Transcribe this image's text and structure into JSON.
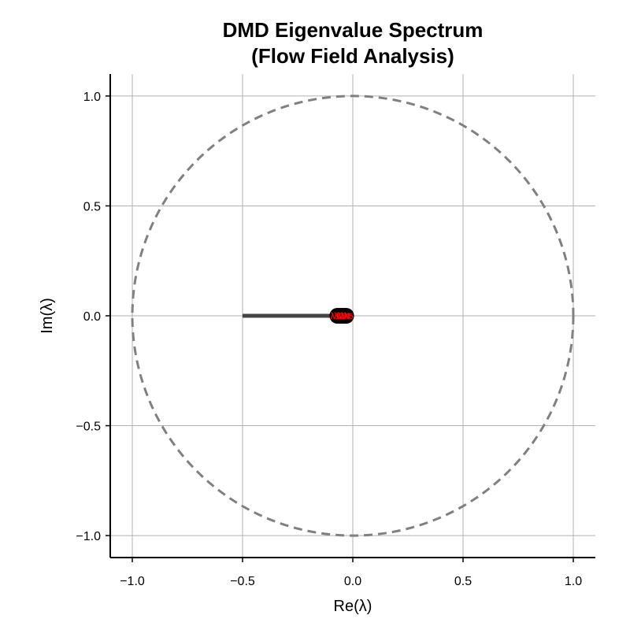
{
  "chart_data": {
    "type": "scatter",
    "title": [
      "DMD Eigenvalue Spectrum",
      "(Flow Field Analysis)"
    ],
    "xlabel": "Re(λ)",
    "ylabel": "Im(λ)",
    "xlim": [
      -1.1,
      1.1
    ],
    "ylim": [
      -1.1,
      1.1
    ],
    "xticks": [
      -1.0,
      -0.5,
      0.0,
      0.5,
      1.0
    ],
    "yticks": [
      -1.0,
      -0.5,
      0.0,
      0.5,
      1.0
    ],
    "xtick_labels": [
      "−1.0",
      "−0.5",
      "0.0",
      "0.5",
      "1.0"
    ],
    "ytick_labels": [
      "−1.0",
      "−0.5",
      "0.0",
      "0.5",
      "1.0"
    ],
    "grid": true,
    "unit_circle": {
      "center": [
        0,
        0
      ],
      "radius": 1.0,
      "style": "dashed",
      "color": "#808080"
    },
    "segment": {
      "from": [
        -0.5,
        0.0
      ],
      "to": [
        0.0,
        0.0
      ],
      "color": "#444444"
    },
    "eigenvalues": [
      {
        "re": -0.07,
        "im": 0.0,
        "label": "λ1"
      },
      {
        "re": -0.06,
        "im": 0.0,
        "label": "λ2"
      },
      {
        "re": -0.05,
        "im": 0.0,
        "label": "λ3"
      },
      {
        "re": -0.04,
        "im": 0.0,
        "label": "λ4"
      },
      {
        "re": -0.03,
        "im": 0.0,
        "label": "λ5"
      }
    ],
    "marker_color": "#000000",
    "label_color": "#ff0000"
  }
}
